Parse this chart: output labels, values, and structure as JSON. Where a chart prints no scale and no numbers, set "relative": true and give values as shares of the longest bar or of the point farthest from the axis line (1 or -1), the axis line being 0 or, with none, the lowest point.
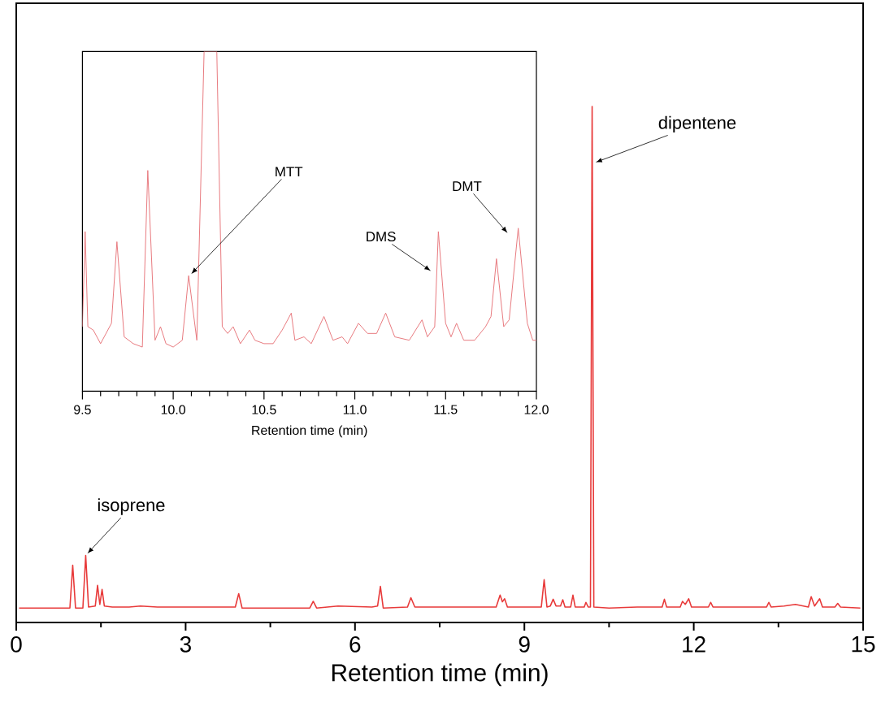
{
  "chart_data": [
    {
      "type": "line",
      "xlabel": "Retention time (min)",
      "relative": true,
      "color": "#e83a3a",
      "xlim": [
        0,
        15
      ],
      "xticks": [
        0,
        3,
        6,
        9,
        12,
        15
      ],
      "x": [
        0.05,
        0.95,
        1.0,
        1.05,
        1.18,
        1.23,
        1.28,
        1.4,
        1.44,
        1.48,
        1.52,
        1.56,
        1.7,
        2.0,
        2.2,
        2.5,
        3.5,
        3.88,
        3.94,
        4.0,
        5.2,
        5.26,
        5.32,
        5.7,
        6.3,
        6.4,
        6.45,
        6.5,
        6.93,
        6.99,
        7.06,
        7.5,
        8.5,
        8.57,
        8.61,
        8.65,
        8.7,
        9.3,
        9.35,
        9.4,
        9.46,
        9.51,
        9.56,
        9.64,
        9.68,
        9.72,
        9.82,
        9.86,
        9.9,
        10.06,
        10.09,
        10.13,
        10.17,
        10.2,
        10.23,
        10.5,
        11.0,
        11.44,
        11.48,
        11.52,
        11.76,
        11.8,
        11.85,
        11.91,
        11.96,
        12.26,
        12.3,
        12.34,
        13.29,
        13.33,
        13.37,
        13.6,
        13.8,
        14.03,
        14.08,
        14.14,
        14.23,
        14.28,
        14.5,
        14.55,
        14.6,
        14.95
      ],
      "values": [
        0.028,
        0.028,
        0.111,
        0.028,
        0.028,
        0.13,
        0.03,
        0.032,
        0.072,
        0.035,
        0.064,
        0.032,
        0.03,
        0.03,
        0.032,
        0.03,
        0.03,
        0.03,
        0.056,
        0.028,
        0.028,
        0.041,
        0.028,
        0.032,
        0.03,
        0.032,
        0.07,
        0.028,
        0.03,
        0.048,
        0.03,
        0.03,
        0.03,
        0.053,
        0.04,
        0.046,
        0.03,
        0.03,
        0.083,
        0.03,
        0.032,
        0.045,
        0.032,
        0.032,
        0.044,
        0.03,
        0.03,
        0.053,
        0.03,
        0.03,
        0.039,
        0.03,
        0.03,
        1.0,
        0.03,
        0.028,
        0.03,
        0.03,
        0.045,
        0.03,
        0.03,
        0.041,
        0.035,
        0.046,
        0.03,
        0.03,
        0.039,
        0.03,
        0.03,
        0.039,
        0.03,
        0.032,
        0.035,
        0.03,
        0.05,
        0.032,
        0.046,
        0.03,
        0.03,
        0.037,
        0.03,
        0.028
      ],
      "annotations": [
        {
          "text": "isoprene",
          "x": 1.23,
          "y": 0.13
        },
        {
          "text": "dipentene",
          "x": 10.22,
          "y": 0.89
        }
      ]
    },
    {
      "type": "line",
      "xlabel": "Retention time (min)",
      "relative": true,
      "color": "#e87a80",
      "xlim": [
        9.5,
        12.0
      ],
      "xticks": [
        9.5,
        {
          "value": 10.0,
          "label": "10.0"
        },
        10.5,
        {
          "value": 11.0,
          "label": "11.0"
        },
        11.5,
        {
          "value": 12.0,
          "label": "12.0"
        }
      ],
      "x": [
        9.5,
        9.515,
        9.53,
        9.56,
        9.6,
        9.66,
        9.69,
        9.73,
        9.78,
        9.83,
        9.86,
        9.9,
        9.93,
        9.96,
        10.0,
        10.05,
        10.085,
        10.13,
        10.17,
        10.24,
        10.27,
        10.3,
        10.33,
        10.37,
        10.42,
        10.45,
        10.5,
        10.55,
        10.6,
        10.65,
        10.67,
        10.72,
        10.76,
        10.83,
        10.88,
        10.93,
        10.96,
        11.02,
        11.07,
        11.12,
        11.17,
        11.22,
        11.3,
        11.37,
        11.4,
        11.44,
        11.46,
        11.5,
        11.53,
        11.56,
        11.6,
        11.66,
        11.72,
        11.75,
        11.78,
        11.82,
        11.85,
        11.9,
        11.95,
        11.98,
        12.0
      ],
      "values": [
        0.19,
        0.47,
        0.19,
        0.18,
        0.14,
        0.2,
        0.44,
        0.16,
        0.14,
        0.13,
        0.65,
        0.15,
        0.19,
        0.14,
        0.13,
        0.15,
        0.34,
        0.15,
        1.0,
        1.0,
        0.19,
        0.17,
        0.19,
        0.14,
        0.18,
        0.15,
        0.14,
        0.14,
        0.18,
        0.23,
        0.15,
        0.16,
        0.14,
        0.22,
        0.15,
        0.16,
        0.14,
        0.2,
        0.17,
        0.17,
        0.23,
        0.16,
        0.15,
        0.21,
        0.16,
        0.19,
        0.47,
        0.2,
        0.16,
        0.2,
        0.15,
        0.15,
        0.19,
        0.22,
        0.39,
        0.19,
        0.21,
        0.48,
        0.2,
        0.15,
        0.15
      ],
      "annotations": [
        {
          "text": "MTT",
          "x": 10.09,
          "y": 0.34
        },
        {
          "text": "DMS",
          "x": 11.43,
          "y": 0.35
        },
        {
          "text": "DMT",
          "x": 11.85,
          "y": 0.46
        }
      ]
    }
  ]
}
